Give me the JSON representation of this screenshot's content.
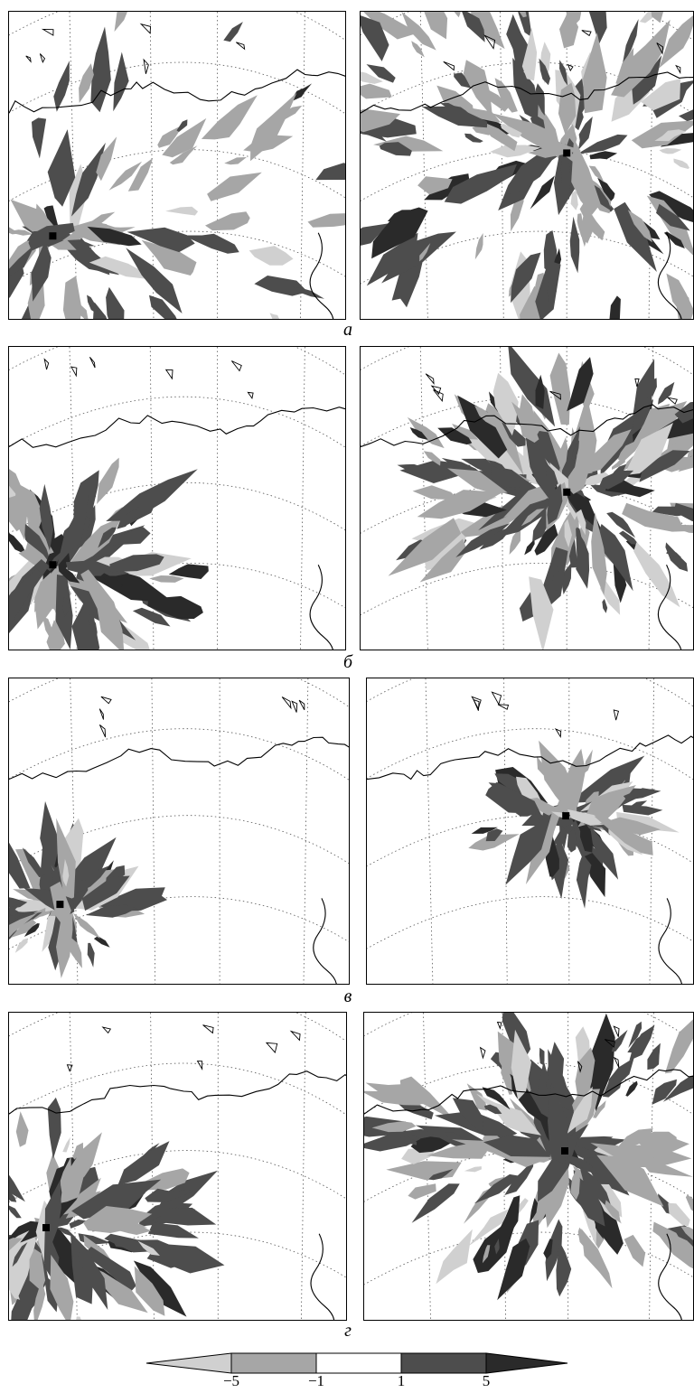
{
  "rows": [
    {
      "label": "а"
    },
    {
      "label": "б"
    },
    {
      "label": "в"
    },
    {
      "label": "г"
    }
  ],
  "colorbar": {
    "ticks": [
      "−5",
      "−1",
      "1",
      "5"
    ],
    "colors": {
      "strong_negative": "#d0d0d0",
      "negative": "#a6a6a6",
      "neutral": "#ffffff",
      "positive": "#4d4d4d",
      "strong_positive": "#2a2a2a"
    }
  }
}
